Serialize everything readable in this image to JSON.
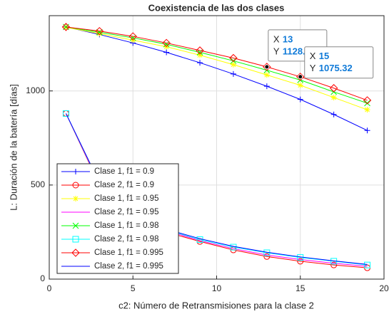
{
  "chart_data": {
    "type": "line",
    "title": "Coexistencia de las dos clases",
    "xlabel": "c2: Número de Retransmisiones para la clase 2",
    "ylabel": "L: Duración de la batería [días]",
    "x": [
      1,
      3,
      5,
      7,
      9,
      11,
      13,
      15,
      17,
      19
    ],
    "xlim": [
      0,
      20
    ],
    "xticks": [
      0,
      5,
      10,
      15,
      20
    ],
    "ylim": [
      0,
      1400
    ],
    "yticks": [
      0,
      500,
      1000
    ],
    "grid": true,
    "legend": "southwest",
    "series": [
      {
        "name": "Clase 1, f1 = 0.9",
        "color": "#0000ff",
        "marker": "+",
        "values": [
          1340,
          1300,
          1255,
          1205,
          1150,
          1090,
          1025,
          955,
          875,
          790
        ]
      },
      {
        "name": "Clase 2, f1 = 0.9",
        "color": "#ff0000",
        "marker": "o",
        "values": [
          880,
          500,
          340,
          250,
          200,
          155,
          120,
          95,
          75,
          60
        ]
      },
      {
        "name": "Clase 1, f1 = 0.95",
        "color": "#ffff00",
        "marker": "*",
        "values": [
          1338,
          1305,
          1270,
          1235,
          1190,
          1140,
          1085,
          1030,
          965,
          900
        ]
      },
      {
        "name": "Clase 2, f1 = 0.95",
        "color": "#ff00ff",
        "marker": "none",
        "values": [
          880,
          505,
          345,
          258,
          205,
          162,
          128,
          104,
          84,
          68
        ]
      },
      {
        "name": "Clase 1, f1 = 0.98",
        "color": "#00ff00",
        "marker": "x",
        "values": [
          1340,
          1312,
          1282,
          1248,
          1205,
          1160,
          1110,
          1058,
          995,
          935
        ]
      },
      {
        "name": "Clase 2, f1 = 0.98",
        "color": "#00ffff",
        "marker": "s",
        "values": [
          880,
          510,
          350,
          262,
          210,
          170,
          140,
          115,
          95,
          75
        ]
      },
      {
        "name": "Clase 1, f1 = 0.995",
        "color": "#ff0000",
        "marker": "d",
        "values": [
          1340,
          1318,
          1290,
          1255,
          1215,
          1175,
          1128.02,
          1075.32,
          1015,
          950
        ]
      },
      {
        "name": "Clase 2, f1 = 0.995",
        "color": "#0000ff",
        "marker": "none",
        "values": [
          880,
          512,
          352,
          265,
          215,
          174,
          143,
          118,
          97,
          78
        ]
      }
    ],
    "datatips": [
      {
        "x_label": "X",
        "x": 13,
        "y_label": "Y",
        "y": 1128.02
      },
      {
        "x_label": "X",
        "x": 15,
        "y_label": "Y",
        "y": 1075.32
      }
    ]
  }
}
